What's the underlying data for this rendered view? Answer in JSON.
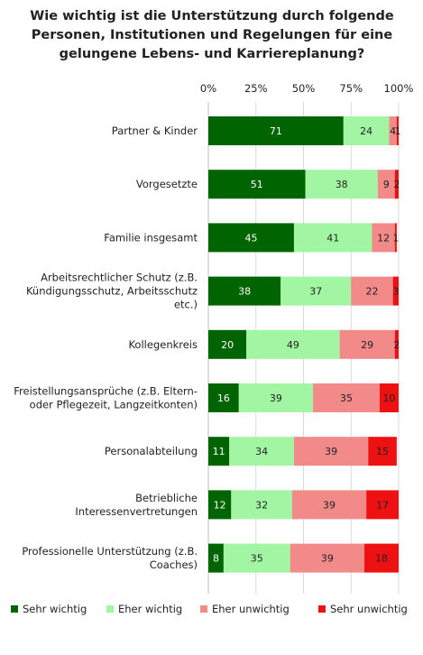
{
  "chart_data": {
    "type": "bar",
    "orientation": "horizontal",
    "stacked": true,
    "title": "Wie wichtig ist die Unterstützung durch folgende\nPersonen, Institutionen und Regelungen für eine\ngelungene Lebens- und Karriereplanung?",
    "xlim": [
      0,
      100
    ],
    "xticks": [
      "0%",
      "25%",
      "50%",
      "75%",
      "100%"
    ],
    "xtick_values": [
      0,
      25,
      50,
      75,
      100
    ],
    "grid": true,
    "legend_position": "bottom",
    "categories": [
      [
        "Partner & Kinder"
      ],
      [
        "Vorgesetzte"
      ],
      [
        "Familie insgesamt"
      ],
      [
        "Arbeitsrechtlicher Schutz (z.B.",
        "Kündigungsschutz, Arbeitsschutz",
        "etc.)"
      ],
      [
        "Kollegenkreis"
      ],
      [
        "Freistellungsansprüche (z.B. Eltern-",
        "oder Pflegezeit, Langzeitkonten)"
      ],
      [
        "Personalabteilung"
      ],
      [
        "Betriebliche",
        "Interessenvertretungen"
      ],
      [
        "Professionelle Unterstützung (z.B.",
        "Coaches)"
      ]
    ],
    "series": [
      {
        "name": "Sehr wichtig",
        "color": "#006400",
        "label_color": "#ffffff",
        "values": [
          71,
          51,
          45,
          38,
          20,
          16,
          11,
          12,
          8
        ]
      },
      {
        "name": "Eher wichtig",
        "color": "#a2f5a2",
        "label_color": "#222222",
        "values": [
          24,
          38,
          41,
          37,
          49,
          39,
          34,
          32,
          35
        ]
      },
      {
        "name": "Eher unwichtig",
        "color": "#f28a8a",
        "label_color": "#222222",
        "values": [
          4,
          9,
          12,
          22,
          29,
          35,
          39,
          39,
          39
        ]
      },
      {
        "name": "Sehr unwichtig",
        "color": "#ee1111",
        "label_color": "#222222",
        "values": [
          1,
          2,
          1,
          3,
          2,
          10,
          15,
          17,
          18
        ]
      }
    ],
    "data_labels": [
      [
        "71",
        "24",
        "4",
        "1"
      ],
      [
        "51",
        "38",
        "9",
        "2"
      ],
      [
        "45",
        "41",
        "12",
        "1"
      ],
      [
        "38",
        "37",
        "22",
        "3"
      ],
      [
        "20",
        "49",
        "29",
        "2"
      ],
      [
        "16",
        "39",
        "35",
        "10"
      ],
      [
        "11",
        "34",
        "39",
        "15"
      ],
      [
        "12",
        "32",
        "39",
        "17"
      ],
      [
        "8",
        "35",
        "39",
        "18"
      ]
    ]
  }
}
